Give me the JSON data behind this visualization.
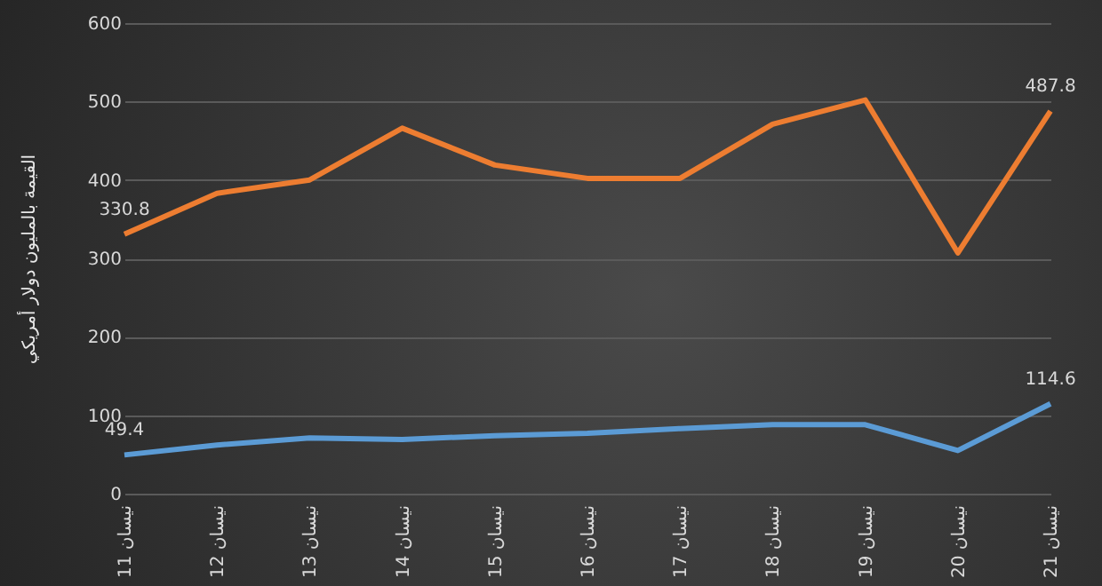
{
  "chart_data": {
    "type": "line",
    "ylabel": "القيمة بالمليون دولار أمريكي",
    "categories": [
      "11 نيسان",
      "12 نيسان",
      "13 نيسان",
      "14 نيسان",
      "15 نيسان",
      "16 نيسان",
      "17 نيسان",
      "18 نيسان",
      "19 نيسان",
      "20 نيسان",
      "21 نيسان"
    ],
    "series": [
      {
        "color": "#ed7d31",
        "values": [
          330.8,
          383,
          400,
          466,
          419,
          402,
          402,
          471,
          502,
          307,
          487.8
        ],
        "value_labels": [
          "330.8",
          null,
          null,
          null,
          null,
          null,
          null,
          null,
          null,
          null,
          "487.8"
        ]
      },
      {
        "color": "#5b9bd5",
        "values": [
          49.4,
          62,
          71,
          69,
          74,
          77,
          83,
          88,
          88,
          55,
          114.6
        ],
        "value_labels": [
          "49.4",
          null,
          null,
          null,
          null,
          null,
          null,
          null,
          null,
          null,
          "114.6"
        ]
      }
    ],
    "ylim": [
      0,
      600
    ],
    "yticks": [
      0,
      100,
      200,
      300,
      400,
      500,
      600
    ],
    "grid": "y",
    "legend": false,
    "marker": "none",
    "line_style": "solid"
  }
}
